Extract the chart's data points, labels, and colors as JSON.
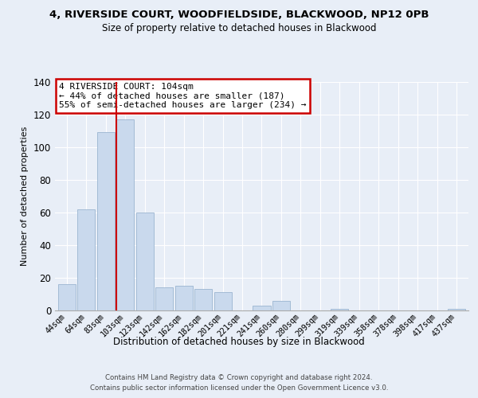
{
  "title": "4, RIVERSIDE COURT, WOODFIELDSIDE, BLACKWOOD, NP12 0PB",
  "subtitle": "Size of property relative to detached houses in Blackwood",
  "xlabel": "Distribution of detached houses by size in Blackwood",
  "ylabel": "Number of detached properties",
  "bar_labels": [
    "44sqm",
    "64sqm",
    "83sqm",
    "103sqm",
    "123sqm",
    "142sqm",
    "162sqm",
    "182sqm",
    "201sqm",
    "221sqm",
    "241sqm",
    "260sqm",
    "280sqm",
    "299sqm",
    "319sqm",
    "339sqm",
    "358sqm",
    "378sqm",
    "398sqm",
    "417sqm",
    "437sqm"
  ],
  "bar_values": [
    16,
    62,
    109,
    117,
    60,
    14,
    15,
    13,
    11,
    0,
    3,
    6,
    0,
    0,
    1,
    0,
    0,
    0,
    0,
    0,
    1
  ],
  "bar_color": "#c9d9ed",
  "bar_edge_color": "#9ab5d0",
  "highlight_bar_index": 3,
  "highlight_line_color": "#cc0000",
  "annotation_box_text": "4 RIVERSIDE COURT: 104sqm\n← 44% of detached houses are smaller (187)\n55% of semi-detached houses are larger (234) →",
  "annotation_box_edge_color": "#cc0000",
  "annotation_box_face_color": "#ffffff",
  "ylim": [
    0,
    140
  ],
  "yticks": [
    0,
    20,
    40,
    60,
    80,
    100,
    120,
    140
  ],
  "footer_line1": "Contains HM Land Registry data © Crown copyright and database right 2024.",
  "footer_line2": "Contains public sector information licensed under the Open Government Licence v3.0.",
  "background_color": "#e8eef7",
  "plot_bg_color": "#e8eef7",
  "grid_color": "#ffffff",
  "title_fontsize": 9.5,
  "subtitle_fontsize": 8.5
}
